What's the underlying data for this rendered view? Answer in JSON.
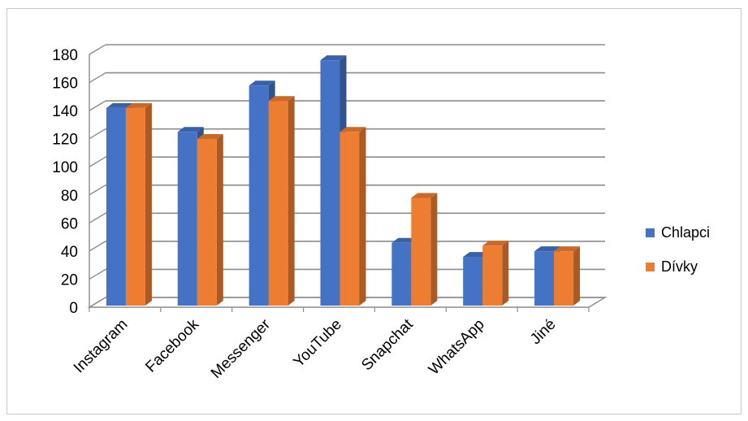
{
  "chart_data": {
    "type": "bar",
    "categories": [
      "Instagram",
      "Facebook",
      "Messenger",
      "YouTube",
      "Snapchat",
      "WhatsApp",
      "Jiné"
    ],
    "series": [
      {
        "name": "Chlapci",
        "values": [
          143,
          126,
          159,
          177,
          47,
          37,
          41
        ],
        "color": "#4472C4"
      },
      {
        "name": "Dívky",
        "values": [
          143,
          121,
          148,
          126,
          79,
          45,
          41
        ],
        "color": "#ED7D31"
      }
    ],
    "ylim": [
      0,
      180
    ],
    "yticks": [
      "0",
      "20",
      "40",
      "60",
      "80",
      "100",
      "120",
      "140",
      "160",
      "180"
    ],
    "grid": true,
    "legend_position": "right",
    "three_d": true
  }
}
